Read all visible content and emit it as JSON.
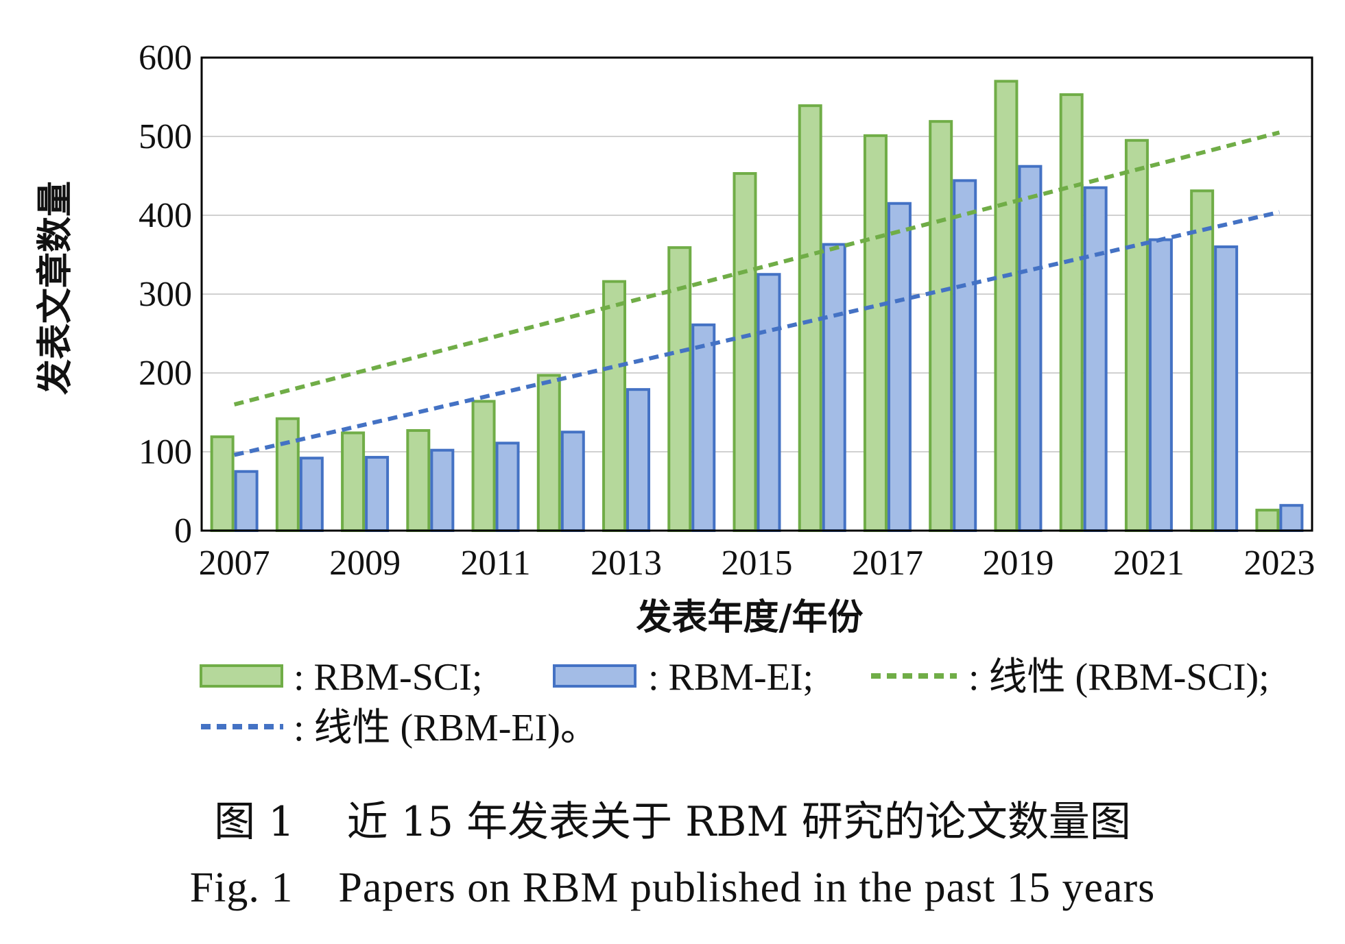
{
  "colors": {
    "sci_fill": "#b5d89b",
    "sci_stroke": "#70ad47",
    "ei_fill": "#a3bce6",
    "ei_stroke": "#4472c4",
    "sci_trend": "#70ad47",
    "ei_trend": "#4472c4",
    "grid": "#d0d0d0",
    "frame": "#000000"
  },
  "legend": {
    "sci_label": ": RBM-SCI;",
    "ei_label": ": RBM-EI;",
    "sci_trend_label": ": 线性 (RBM-SCI);",
    "ei_trend_label": ": 线性 (RBM-EI)。"
  },
  "caption": {
    "cn": "图 1    近 15 年发表关于 RBM 研究的论文数量图",
    "en": "Fig. 1    Papers on RBM published in the past 15 years"
  },
  "chart_data": {
    "type": "bar",
    "title": "",
    "xlabel": "发表年度/年份",
    "ylabel": "发表文章数量",
    "ylim": [
      0,
      600
    ],
    "yticks": [
      0,
      100,
      200,
      300,
      400,
      500,
      600
    ],
    "categories": [
      "2007",
      "2008",
      "2009",
      "2010",
      "2011",
      "2012",
      "2013",
      "2014",
      "2015",
      "2016",
      "2017",
      "2018",
      "2019",
      "2020",
      "2021",
      "2022",
      "2023"
    ],
    "xtick_labels": [
      "2007",
      "2009",
      "2011",
      "2013",
      "2015",
      "2017",
      "2019",
      "2021",
      "2023"
    ],
    "grid": "horizontal",
    "legend_position": "bottom",
    "series": [
      {
        "name": "RBM-SCI",
        "values": [
          119,
          142,
          124,
          127,
          164,
          197,
          316,
          359,
          453,
          539,
          501,
          519,
          570,
          553,
          495,
          431,
          26
        ]
      },
      {
        "name": "RBM-EI",
        "values": [
          75,
          92,
          93,
          102,
          111,
          125,
          179,
          261,
          325,
          363,
          415,
          444,
          462,
          435,
          369,
          360,
          32
        ]
      }
    ],
    "trendlines": [
      {
        "name": "线性 (RBM-SCI)",
        "type": "linear",
        "start": 160,
        "end": 505
      },
      {
        "name": "线性 (RBM-EI)",
        "type": "linear",
        "start": 96,
        "end": 404
      }
    ]
  }
}
